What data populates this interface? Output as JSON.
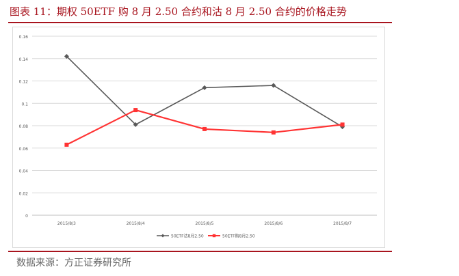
{
  "figure": {
    "title": "图表 11：期权 50ETF 购 8 月 2.50 合约和沽 8 月 2.50 合约的价格走势",
    "source": "数据来源：方正证券研究所"
  },
  "colors": {
    "title": "#a8141e",
    "rule": "#a8141e",
    "put_series": "#595959",
    "call_series": "#ff3333",
    "grid": "#d9d9d9"
  },
  "chart_data": {
    "type": "line",
    "categories": [
      "2015/8/3",
      "2015/8/4",
      "2015/8/5",
      "2015/8/6",
      "2015/8/7"
    ],
    "ylim": [
      0,
      0.16
    ],
    "yticks": [
      "0",
      "0.02",
      "0.04",
      "0.06",
      "0.08",
      "0.1",
      "0.12",
      "0.14",
      "0.16"
    ],
    "grid": true,
    "legend": "bottom",
    "series": [
      {
        "name": "50ETF沽8月2.50",
        "values": [
          0.142,
          0.081,
          0.114,
          0.116,
          0.079
        ],
        "color": "#595959",
        "marker": "diamond"
      },
      {
        "name": "50ETF购8月2.50",
        "values": [
          0.063,
          0.094,
          0.077,
          0.074,
          0.081
        ],
        "color": "#ff3333",
        "marker": "square"
      }
    ]
  }
}
